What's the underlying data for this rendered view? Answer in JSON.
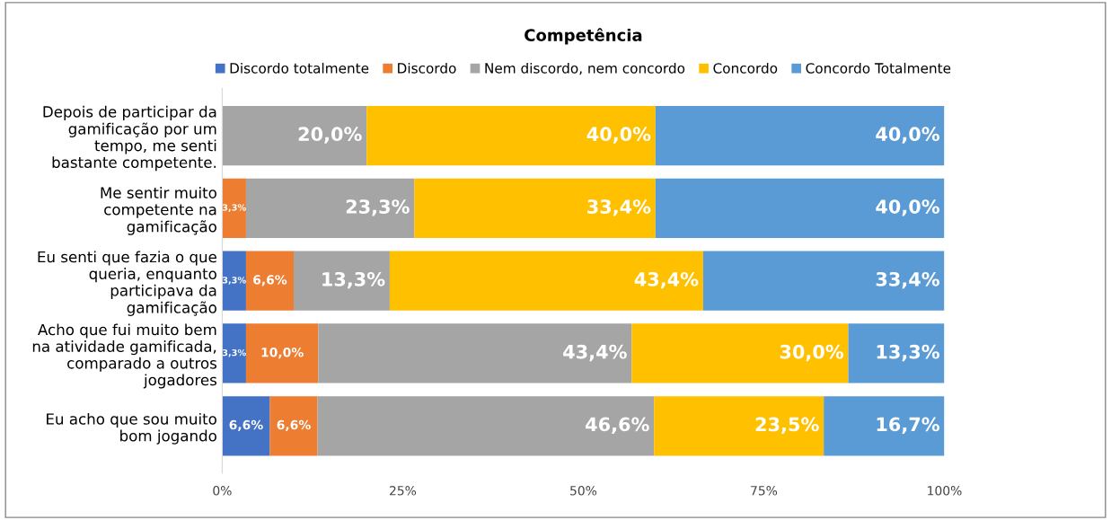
{
  "chart_data": {
    "type": "bar",
    "orientation": "horizontal",
    "stacked": true,
    "title": "Competência",
    "categories": [
      "Depois de participar da\ngamificação por um\ntempo, me senti\nbastante competente.",
      "Me sentir muito\ncompetente na\ngamificação",
      "Eu senti que fazia o que\nqueria, enquanto\nparticipava da\ngamificação",
      "Acho que fui muito bem\nna atividade gamificada,\ncomparado a outros\njogadores",
      "Eu acho que sou muito\nbom jogando"
    ],
    "series": [
      {
        "name": "Discordo totalmente",
        "color": "#4472c4",
        "values": [
          null,
          null,
          3.3,
          3.3,
          6.6
        ],
        "value_labels": [
          null,
          null,
          "3,3%",
          "3,3%",
          "6,6%"
        ]
      },
      {
        "name": "Discordo",
        "color": "#ed7d31",
        "values": [
          null,
          3.3,
          6.6,
          10.0,
          6.6
        ],
        "value_labels": [
          null,
          "3,3%",
          "6,6%",
          "10,0%",
          "6,6%"
        ]
      },
      {
        "name": "Nem discordo, nem concordo",
        "color": "#a5a5a5",
        "values": [
          20.0,
          23.3,
          13.3,
          43.4,
          46.6
        ],
        "value_labels": [
          "20,0%",
          "23,3%",
          "13,3%",
          "43,4%",
          "46,6%"
        ]
      },
      {
        "name": "Concordo",
        "color": "#ffc000",
        "values": [
          40.0,
          33.4,
          43.4,
          30.0,
          23.5
        ],
        "value_labels": [
          "40,0%",
          "33,4%",
          "43,4%",
          "30,0%",
          "23,5%"
        ]
      },
      {
        "name": "Concordo Totalmente",
        "color": "#5b9bd5",
        "values": [
          40.0,
          40.0,
          33.4,
          13.3,
          16.7
        ],
        "value_labels": [
          "40,0%",
          "40,0%",
          "33,4%",
          "13,3%",
          "16,7%"
        ]
      }
    ],
    "xlim": [
      0,
      100
    ],
    "xticks": [
      {
        "value": 0,
        "label": "0%"
      },
      {
        "value": 25,
        "label": "25%"
      },
      {
        "value": 50,
        "label": "50%"
      },
      {
        "value": 75,
        "label": "75%"
      },
      {
        "value": 100,
        "label": "100%"
      }
    ],
    "legend": "top",
    "grid": false
  }
}
